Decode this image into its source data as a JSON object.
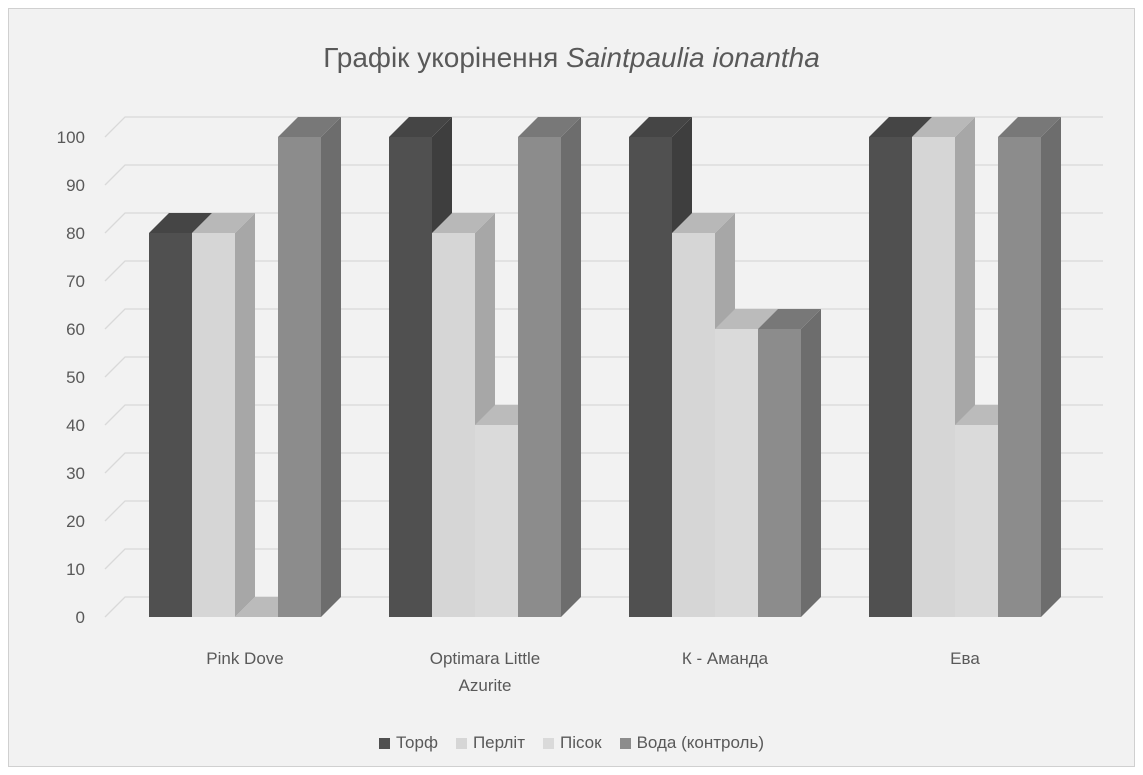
{
  "chart_data": {
    "type": "bar",
    "title_prefix": "Графік укорінення ",
    "title_species": "Saintpaulia ionantha",
    "categories": [
      [
        "Pink Dove"
      ],
      [
        "Optimara Little",
        "Azurite"
      ],
      [
        "К - Аманда"
      ],
      [
        "Ева"
      ]
    ],
    "series": [
      {
        "name": "Торф",
        "color": "#505050",
        "values": [
          80,
          100,
          100,
          100
        ]
      },
      {
        "name": "Перліт",
        "color": "#d6d6d6",
        "values": [
          80,
          80,
          80,
          100
        ]
      },
      {
        "name": "Пісок",
        "color": "#dadada",
        "values": [
          0,
          40,
          60,
          40
        ]
      },
      {
        "name": "Вода (контроль)",
        "color": "#8c8c8c",
        "values": [
          100,
          100,
          60,
          100
        ]
      }
    ],
    "ylim": [
      0,
      100
    ],
    "yticks": [
      0,
      10,
      20,
      30,
      40,
      50,
      60,
      70,
      80,
      90,
      100
    ],
    "grid": true,
    "legend_position": "bottom",
    "style": "3d-clustered-column"
  }
}
